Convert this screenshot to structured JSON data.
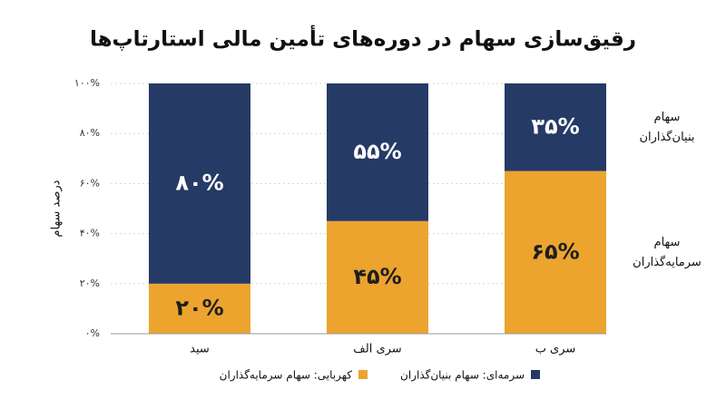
{
  "chart_data": {
    "type": "stacked_bar",
    "title": "رقیق‌سازی سهام در دوره‌های تأمین مالی استارتاپ‌ها",
    "y_label": "درصد سهام",
    "categories": [
      "سید",
      "سری الف",
      "سری ب"
    ],
    "series": [
      {
        "name": "کهربایی: سهام سرمایه‌گذاران",
        "color": "#eca42f",
        "label_color": "#1e1e1e",
        "values": [
          20,
          45,
          65
        ],
        "value_labels": [
          "۲۰%",
          "۴۵%",
          "۶۵%"
        ]
      },
      {
        "name": "سرمه‌ای: سهام بنیان‌گذاران",
        "color": "#263a66",
        "label_color": "#ffffff",
        "values": [
          80,
          55,
          35
        ],
        "value_labels": [
          "۸۰%",
          "۵۵%",
          "۳۵%"
        ]
      }
    ],
    "annotations": [
      {
        "series": 1,
        "lines": [
          "سهام",
          "بنیان‌گذاران"
        ]
      },
      {
        "series": 0,
        "lines": [
          "سهام",
          "سرمایه‌گذاران"
        ]
      }
    ],
    "ylim": [
      0,
      100
    ],
    "yticks": [
      {
        "value": 0,
        "label": "۰%"
      },
      {
        "value": 20,
        "label": "۲۰%"
      },
      {
        "value": 40,
        "label": "۴۰%"
      },
      {
        "value": 60,
        "label": "۶۰%"
      },
      {
        "value": 80,
        "label": "۸۰%"
      },
      {
        "value": 100,
        "label": "۱۰۰%"
      }
    ],
    "grid": true
  }
}
